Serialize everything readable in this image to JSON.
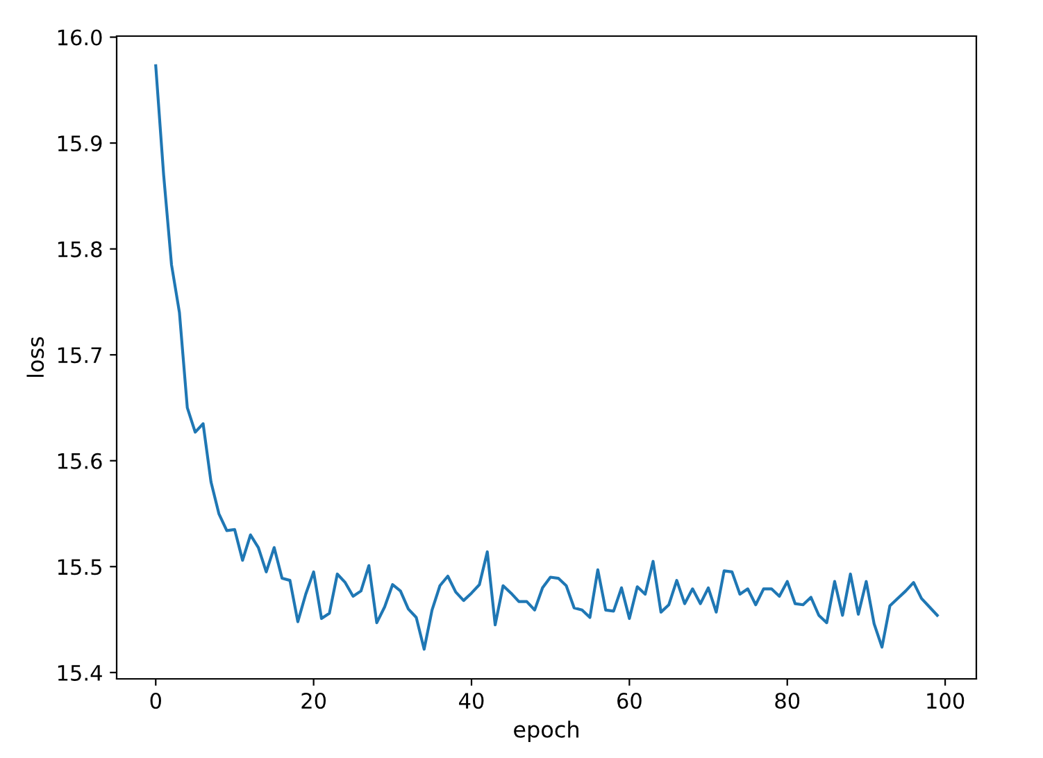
{
  "chart_data": {
    "type": "line",
    "xlabel": "epoch",
    "ylabel": "loss",
    "x": [
      0,
      1,
      2,
      3,
      4,
      5,
      6,
      7,
      8,
      9,
      10,
      11,
      12,
      13,
      14,
      15,
      16,
      17,
      18,
      19,
      20,
      21,
      22,
      23,
      24,
      25,
      26,
      27,
      28,
      29,
      30,
      31,
      32,
      33,
      34,
      35,
      36,
      37,
      38,
      39,
      40,
      41,
      42,
      43,
      44,
      45,
      46,
      47,
      48,
      49,
      50,
      51,
      52,
      53,
      54,
      55,
      56,
      57,
      58,
      59,
      60,
      61,
      62,
      63,
      64,
      65,
      66,
      67,
      68,
      69,
      70,
      71,
      72,
      73,
      74,
      75,
      76,
      77,
      78,
      79,
      80,
      81,
      82,
      83,
      84,
      85,
      86,
      87,
      88,
      89,
      90,
      91,
      92,
      93,
      94,
      95,
      96,
      97,
      98,
      99
    ],
    "series": [
      {
        "color": "#1f77b4",
        "values": [
          15.973,
          15.87,
          15.785,
          15.74,
          15.65,
          15.627,
          15.635,
          15.58,
          15.55,
          15.534,
          15.535,
          15.506,
          15.53,
          15.518,
          15.495,
          15.518,
          15.489,
          15.487,
          15.448,
          15.474,
          15.495,
          15.451,
          15.456,
          15.493,
          15.485,
          15.472,
          15.477,
          15.501,
          15.447,
          15.462,
          15.483,
          15.477,
          15.46,
          15.452,
          15.422,
          15.459,
          15.482,
          15.491,
          15.476,
          15.468,
          15.475,
          15.483,
          15.514,
          15.445,
          15.482,
          15.475,
          15.467,
          15.467,
          15.459,
          15.48,
          15.49,
          15.489,
          15.482,
          15.461,
          15.459,
          15.452,
          15.497,
          15.459,
          15.458,
          15.48,
          15.451,
          15.481,
          15.474,
          15.505,
          15.457,
          15.464,
          15.487,
          15.465,
          15.479,
          15.465,
          15.48,
          15.457,
          15.496,
          15.495,
          15.474,
          15.479,
          15.464,
          15.479,
          15.479,
          15.472,
          15.486,
          15.465,
          15.464,
          15.471,
          15.454,
          15.447,
          15.486,
          15.454,
          15.493,
          15.455,
          15.486,
          15.446,
          15.424,
          15.463,
          15.47,
          15.477,
          15.485,
          15.47,
          15.462,
          15.454
        ]
      }
    ],
    "xlim": [
      -4.95,
      103.95
    ],
    "ylim": [
      15.394,
      16.001
    ],
    "xticks": [
      0,
      20,
      40,
      60,
      80,
      100
    ],
    "yticks": [
      {
        "value": 15.4,
        "label": "15.4"
      },
      {
        "value": 15.5,
        "label": "15.5"
      },
      {
        "value": 15.6,
        "label": "15.6"
      },
      {
        "value": 15.7,
        "label": "15.7"
      },
      {
        "value": 15.8,
        "label": "15.8"
      },
      {
        "value": 15.9,
        "label": "15.9"
      },
      {
        "value": 16.0,
        "label": "16.0"
      }
    ],
    "grid": false,
    "legend": false
  }
}
